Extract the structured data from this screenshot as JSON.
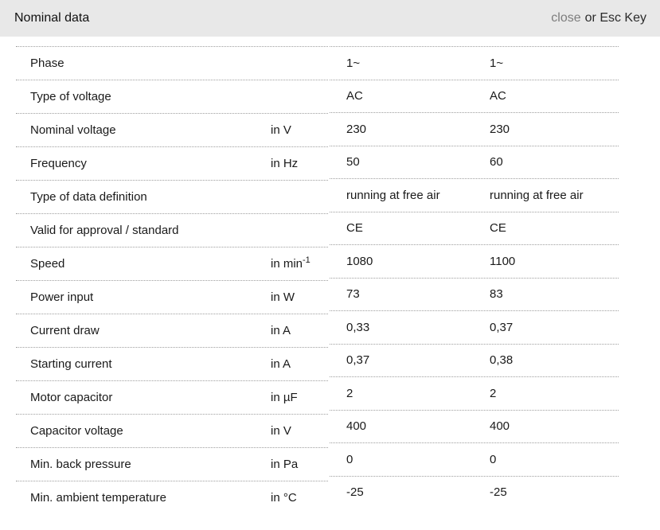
{
  "header": {
    "title": "Nominal data",
    "close_label": "close",
    "esc_hint": "or Esc Key"
  },
  "table": {
    "column_groups": [
      "labels-and-units",
      "values-50Hz-and-60Hz"
    ],
    "rows": [
      {
        "label": "Phase",
        "unit": "",
        "v1": "1~",
        "v2": "1~"
      },
      {
        "label": "Type of voltage",
        "unit": "",
        "v1": "AC",
        "v2": "AC"
      },
      {
        "label": "Nominal voltage",
        "unit": "in V",
        "v1": "230",
        "v2": "230"
      },
      {
        "label": "Frequency",
        "unit": "in Hz",
        "v1": "50",
        "v2": "60"
      },
      {
        "label": "Type of data definition",
        "unit": "",
        "v1": "running at free air",
        "v2": "running at free air"
      },
      {
        "label": "Valid for approval / standard",
        "unit": "",
        "v1": "CE",
        "v2": "CE"
      },
      {
        "label": "Speed",
        "unit": "in min",
        "unit_sup": "-1",
        "v1": "1080",
        "v2": "1100"
      },
      {
        "label": "Power input",
        "unit": "in W",
        "v1": "73",
        "v2": "83"
      },
      {
        "label": "Current draw",
        "unit": "in A",
        "v1": "0,33",
        "v2": "0,37"
      },
      {
        "label": "Starting current",
        "unit": "in A",
        "v1": "0,37",
        "v2": "0,38"
      },
      {
        "label": "Motor capacitor",
        "unit": "in µF",
        "v1": "2",
        "v2": "2"
      },
      {
        "label": "Capacitor voltage",
        "unit": "in V",
        "v1": "400",
        "v2": "400"
      },
      {
        "label": "Min. back pressure",
        "unit": "in Pa",
        "v1": "0",
        "v2": "0"
      },
      {
        "label": "Min. ambient temperature",
        "unit": "in °C",
        "v1": "-25",
        "v2": "-25"
      }
    ]
  },
  "colors": {
    "header_bg": "#e8e8e8",
    "text": "#1a1a1a",
    "close_link": "#7d7d7d",
    "divider": "#9e9e9e"
  }
}
